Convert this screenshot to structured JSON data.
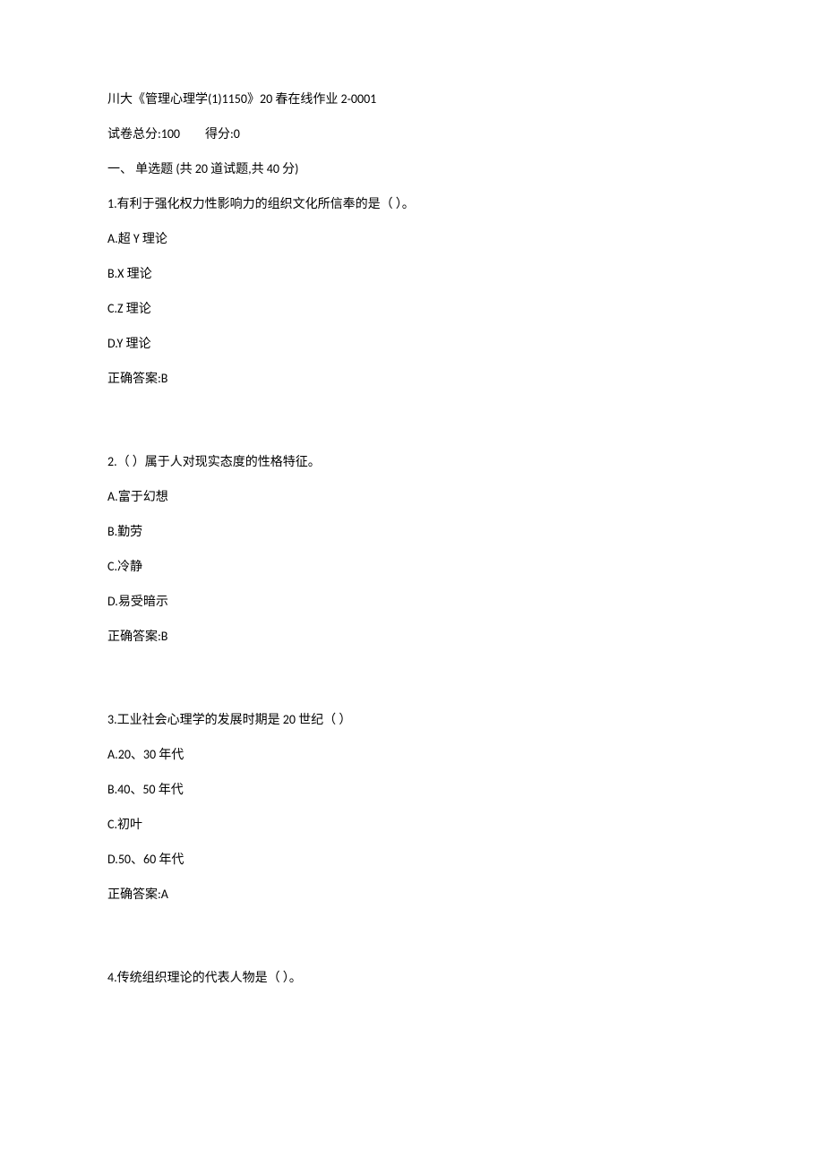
{
  "header": {
    "title": "川大《管理心理学(1)1150》20 春在线作业 2-0001",
    "total_score_label": "试卷总分:100",
    "score_label": "得分:0",
    "section_heading": "一、  单选题 (共 20 道试题,共 40 分)"
  },
  "questions": [
    {
      "number": "1",
      "text": "1.有利于强化权力性影响力的组织文化所信奉的是（ ）。",
      "options": [
        "A.超 Y 理论",
        "B.X 理论",
        "C.Z 理论",
        "D.Y 理论"
      ],
      "answer": "正确答案:B"
    },
    {
      "number": "2",
      "text": "2.（ ）属于人对现实态度的性格特征。",
      "options": [
        "A.富于幻想",
        "B.勤劳",
        "C.冷静",
        "D.易受暗示"
      ],
      "answer": "正确答案:B"
    },
    {
      "number": "3",
      "text": "3.工业社会心理学的发展时期是 20 世纪（ ）",
      "options": [
        "A.20、30 年代",
        "B.40、50 年代",
        "C.初叶",
        "D.50、60 年代"
      ],
      "answer": "正确答案:A"
    },
    {
      "number": "4",
      "text": "4.传统组织理论的代表人物是（ ）。",
      "options": [],
      "answer": ""
    }
  ]
}
